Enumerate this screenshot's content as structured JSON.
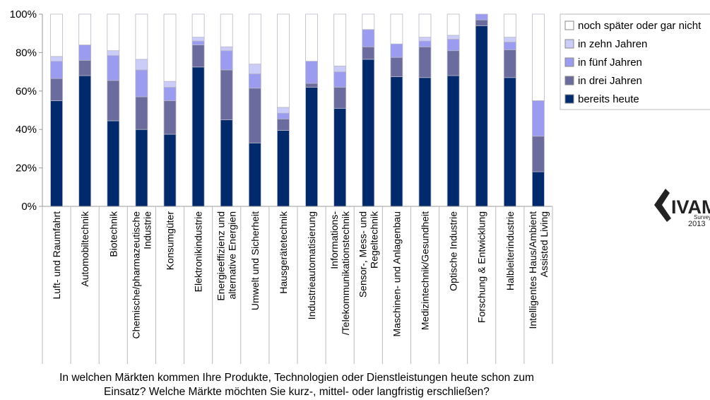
{
  "chart_data": {
    "type": "bar",
    "stacked": true,
    "orientation": "vertical",
    "ylim": [
      0,
      100
    ],
    "yticks": [
      "0%",
      "20%",
      "40%",
      "60%",
      "80%",
      "100%"
    ],
    "grid": false,
    "legend_position": "right",
    "categories": [
      [
        "Luft- und Raumfahrt"
      ],
      [
        "Automobiltechnik"
      ],
      [
        "Biotechnik"
      ],
      [
        "Chemische/pharmazeutische",
        "Industrie"
      ],
      [
        "Konsumgüter"
      ],
      [
        "Elektronikindustrie"
      ],
      [
        "Energieeffizienz und",
        "alternative Energien"
      ],
      [
        "Umwelt und Sicherheit"
      ],
      [
        "Hausgerätetechnik"
      ],
      [
        "Industrieautomatisierung"
      ],
      [
        "Informations-",
        "/Telekommunikationstechnik"
      ],
      [
        "Sensor-, Mess- und",
        "Regeltechnik"
      ],
      [
        "Maschinen- und Anlagenbau"
      ],
      [
        "Medizintechnik/Gesundheit"
      ],
      [
        "Optische Industrie"
      ],
      [
        "Forschung & Entwicklung"
      ],
      [
        "Halbleiterindustrie"
      ],
      [
        "Intelligentes Haus/Ambient",
        "Assisted Living"
      ]
    ],
    "series": [
      {
        "name": "bereits heute",
        "color": "#002a6b",
        "values": [
          55,
          68,
          44.5,
          40,
          37.5,
          72.5,
          45,
          33,
          39.5,
          62,
          51,
          76.5,
          67.5,
          67,
          68,
          94,
          67,
          18
        ]
      },
      {
        "name": "in drei Jahren",
        "color": "#6b6b9e",
        "values": [
          11.5,
          8,
          21,
          17,
          17.5,
          11.5,
          26,
          28.5,
          6,
          2,
          11,
          6.5,
          10,
          16,
          13,
          3,
          14.5,
          18.5
        ]
      },
      {
        "name": "in fünf Jahren",
        "color": "#9b9bf0",
        "values": [
          9,
          8,
          13,
          14,
          7,
          2,
          10,
          7.5,
          3,
          11.5,
          8,
          9,
          7,
          3,
          6,
          3,
          4,
          18.5
        ]
      },
      {
        "name": "in zehn Jahren",
        "color": "#ccccf8",
        "values": [
          2.5,
          0,
          2.5,
          5.5,
          3,
          2,
          2,
          5,
          3,
          0,
          3,
          0,
          0,
          2,
          2,
          0,
          2.5,
          0
        ]
      },
      {
        "name": "noch später oder gar nicht",
        "color": "#ffffff",
        "values": [
          22,
          16,
          19,
          23.5,
          35,
          12,
          17,
          26,
          48.5,
          24.5,
          27,
          8,
          15.5,
          12,
          11,
          0,
          12,
          45
        ]
      }
    ],
    "xlabel": [
      "In welchen Märkten kommen Ihre Produkte, Technologien oder Dienstleistungen heute schon zum",
      "Einsatz? Welche Märkte möchten Sie kurz-, mittel- oder langfristig erschließen?"
    ],
    "ylabel": ""
  },
  "logo": {
    "brand": "IVAM",
    "sub1": "Survey",
    "sub2": "2013"
  }
}
